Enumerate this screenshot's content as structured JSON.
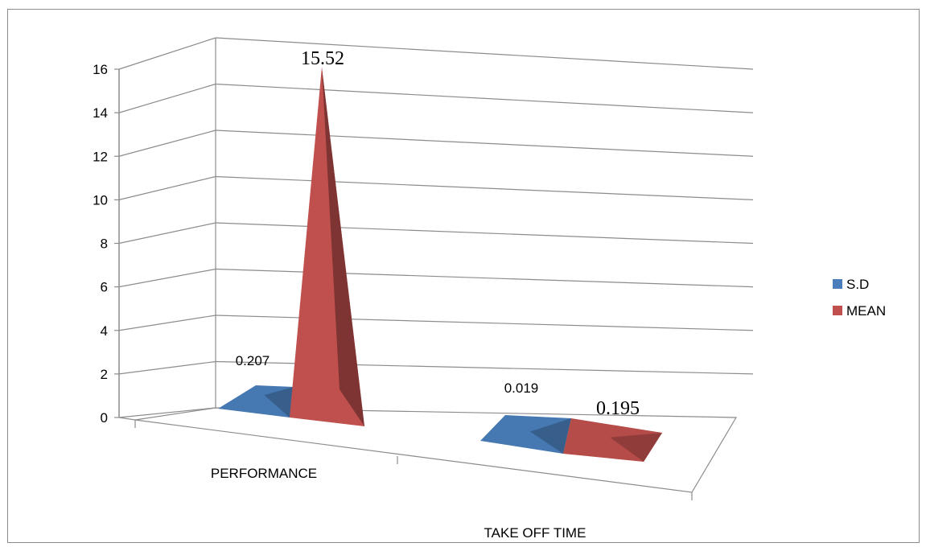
{
  "chart_data": {
    "type": "bar",
    "style": "3d-pyramid",
    "categories": [
      "PERFORMANCE",
      "TAKE OFF TIME"
    ],
    "series": [
      {
        "name": "S.D",
        "values": [
          0.207,
          0.019
        ],
        "color": "#4a7ebb",
        "value_labels": [
          "0.207",
          "0.019"
        ]
      },
      {
        "name": "MEAN",
        "values": [
          15.52,
          0.195
        ],
        "color": "#c0504d",
        "value_labels": [
          "15.52",
          "0.195"
        ]
      }
    ],
    "title": "",
    "xlabel": "",
    "ylabel": "",
    "ylim": [
      0,
      16
    ],
    "yticks": [
      0,
      2,
      4,
      6,
      8,
      10,
      12,
      14,
      16
    ],
    "grid": true,
    "legend_position": "right"
  }
}
